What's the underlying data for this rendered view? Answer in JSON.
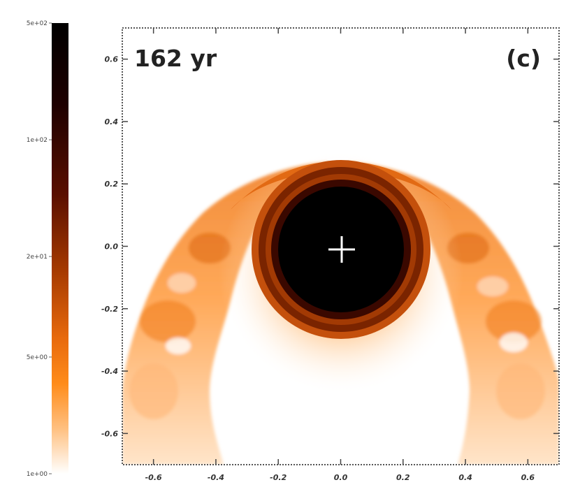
{
  "chart_data": {
    "type": "heatmap",
    "time_label": "162 yr",
    "panel_label": "(c)",
    "xlim": [
      -0.7,
      0.7
    ],
    "ylim": [
      -0.7,
      0.7
    ],
    "x_ticks": [
      -0.6,
      -0.4,
      -0.2,
      0.0,
      0.2,
      0.4,
      0.6
    ],
    "x_tick_labels": [
      "-0.6",
      "-0.4",
      "-0.2",
      "0.0",
      "0.2",
      "0.4",
      "0.6"
    ],
    "y_ticks": [
      0.6,
      0.4,
      0.2,
      0.0,
      -0.2,
      -0.4,
      -0.6
    ],
    "y_tick_labels": [
      "0.6",
      "0.4",
      "0.2",
      "0.0",
      "-0.2",
      "-0.4",
      "-0.6"
    ],
    "colorbar": {
      "scale": "log",
      "range": [
        1,
        500
      ],
      "ticks": [
        500,
        100,
        20,
        5,
        1
      ],
      "tick_labels": [
        "5e+02",
        "1e+02",
        "2e+01",
        "5e+00",
        "1e+00"
      ],
      "colors": [
        "#000000",
        "#1e0000",
        "#5a0f00",
        "#a63a00",
        "#e86a0d",
        "#ff8c1a",
        "#ffc080",
        "#ffffff"
      ]
    },
    "marker": {
      "symbol": "+",
      "x": 0.0,
      "y": 0.0,
      "color": "#ffffff"
    },
    "features": {
      "central_core": {
        "x": 0.0,
        "y": 0.0,
        "radius": 0.18,
        "value": 500
      },
      "dark_shell_radius": 0.26,
      "bow_apex_y": 0.27
    },
    "grid": false
  }
}
